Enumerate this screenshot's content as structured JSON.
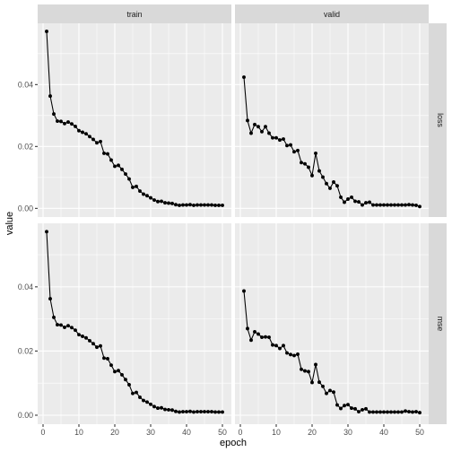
{
  "chart_data": {
    "type": "line",
    "facet_cols": [
      "train",
      "valid"
    ],
    "facet_rows": [
      "loss",
      "mse"
    ],
    "xlabel": "epoch",
    "ylabel": "value",
    "xlim": [
      -1.5,
      52.5
    ],
    "ylim": [
      -0.0028,
      0.0598
    ],
    "x_ticks": [
      0,
      10,
      20,
      30,
      40,
      50
    ],
    "x_tick_labels": [
      "0",
      "10",
      "20",
      "30",
      "40",
      "50"
    ],
    "y_ticks": [
      0.0,
      0.02,
      0.04
    ],
    "y_tick_labels": [
      "0.00",
      "0.02",
      "0.04"
    ],
    "grid": true,
    "x": [
      1,
      2,
      3,
      4,
      5,
      6,
      7,
      8,
      9,
      10,
      11,
      12,
      13,
      14,
      15,
      16,
      17,
      18,
      19,
      20,
      21,
      22,
      23,
      24,
      25,
      26,
      27,
      28,
      29,
      30,
      31,
      32,
      33,
      34,
      35,
      36,
      37,
      38,
      39,
      40,
      41,
      42,
      43,
      44,
      45,
      46,
      47,
      48,
      49,
      50
    ],
    "panels": [
      {
        "col": "train",
        "row": "loss",
        "values": [
          0.0572,
          0.0363,
          0.0305,
          0.0282,
          0.0281,
          0.0274,
          0.0279,
          0.0273,
          0.0265,
          0.0251,
          0.0246,
          0.0241,
          0.0232,
          0.0223,
          0.0212,
          0.0216,
          0.0178,
          0.0176,
          0.0156,
          0.0136,
          0.0139,
          0.0126,
          0.0111,
          0.0095,
          0.0068,
          0.0071,
          0.0056,
          0.0046,
          0.0041,
          0.0034,
          0.0027,
          0.0022,
          0.0023,
          0.0018,
          0.0017,
          0.0016,
          0.0012,
          0.001,
          0.0011,
          0.0011,
          0.0012,
          0.001,
          0.0011,
          0.0011,
          0.0011,
          0.0011,
          0.0011,
          0.001,
          0.001,
          0.001
        ]
      },
      {
        "col": "valid",
        "row": "loss",
        "values": [
          0.0424,
          0.0284,
          0.0243,
          0.0271,
          0.0264,
          0.0248,
          0.0264,
          0.0243,
          0.0228,
          0.0228,
          0.0221,
          0.0224,
          0.0203,
          0.0205,
          0.0183,
          0.0187,
          0.0148,
          0.0144,
          0.0133,
          0.0106,
          0.0178,
          0.0121,
          0.0101,
          0.008,
          0.0065,
          0.0085,
          0.0073,
          0.0036,
          0.002,
          0.003,
          0.0036,
          0.0023,
          0.0021,
          0.0011,
          0.0018,
          0.002,
          0.0011,
          0.0011,
          0.0011,
          0.0011,
          0.0011,
          0.0011,
          0.0011,
          0.0011,
          0.0011,
          0.0011,
          0.0012,
          0.0011,
          0.001,
          0.0006
        ]
      },
      {
        "col": "train",
        "row": "mse",
        "values": [
          0.0572,
          0.0363,
          0.0305,
          0.0282,
          0.0281,
          0.0274,
          0.0279,
          0.0273,
          0.0265,
          0.0251,
          0.0246,
          0.0241,
          0.0232,
          0.0223,
          0.0212,
          0.0216,
          0.0178,
          0.0176,
          0.0156,
          0.0136,
          0.0139,
          0.0126,
          0.0111,
          0.0095,
          0.0068,
          0.0071,
          0.0056,
          0.0046,
          0.0041,
          0.0034,
          0.0027,
          0.0022,
          0.0023,
          0.0018,
          0.0017,
          0.0016,
          0.0012,
          0.001,
          0.0011,
          0.0011,
          0.0012,
          0.001,
          0.0011,
          0.0011,
          0.0011,
          0.0011,
          0.0011,
          0.001,
          0.001,
          0.001
        ]
      },
      {
        "col": "valid",
        "row": "mse",
        "values": [
          0.0387,
          0.027,
          0.0234,
          0.026,
          0.0253,
          0.0243,
          0.0244,
          0.0243,
          0.0219,
          0.0217,
          0.0208,
          0.0217,
          0.0194,
          0.0189,
          0.0186,
          0.019,
          0.0143,
          0.0138,
          0.0136,
          0.0102,
          0.0158,
          0.0103,
          0.009,
          0.0068,
          0.0077,
          0.0072,
          0.0032,
          0.0021,
          0.003,
          0.0033,
          0.0022,
          0.002,
          0.0011,
          0.0017,
          0.002,
          0.001,
          0.001,
          0.001,
          0.001,
          0.001,
          0.001,
          0.001,
          0.001,
          0.001,
          0.001,
          0.0013,
          0.0011,
          0.001,
          0.0011,
          0.0008
        ]
      }
    ]
  }
}
